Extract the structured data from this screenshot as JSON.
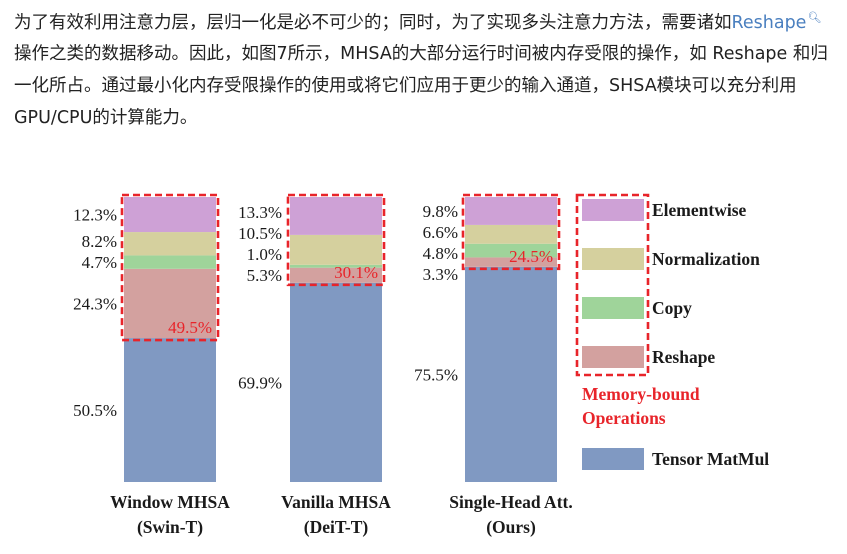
{
  "article": {
    "before_link": "为了有效利用注意力层，层归一化是必不可少的；同时，为了实现多头注意力方法，需要诸如",
    "link_text": "Reshape",
    "link_icon": "search-icon",
    "after_link": " 操作之类的数据移动。因此，如图7所示，MHSA的大部分运行时间被内存受限的操作，如 Reshape 和归一化所占。通过最小化内存受限操作的使用或将它们应用于更少的输入通道，SHSA模块可以充分利用GPU/CPU的计算能力。"
  },
  "chart_data": {
    "type": "bar",
    "stacked": true,
    "ylim": [
      0,
      100
    ],
    "categories": [
      [
        "Window MHSA",
        "(Swin-T)"
      ],
      [
        "Vanilla MHSA",
        "(DeiT-T)"
      ],
      [
        "Single-Head Att.",
        "(Ours)"
      ]
    ],
    "series": [
      {
        "name": "Tensor MatMul",
        "color": "#8099c2",
        "values": [
          50.5,
          69.9,
          75.5
        ]
      },
      {
        "name": "Reshape",
        "color": "#d3a19f",
        "values": [
          24.3,
          5.3,
          3.3
        ]
      },
      {
        "name": "Copy",
        "color": "#9fd49a",
        "values": [
          4.7,
          1.0,
          4.8
        ]
      },
      {
        "name": "Normalization",
        "color": "#d5d09e",
        "values": [
          8.2,
          10.5,
          6.6
        ]
      },
      {
        "name": "Elementwise",
        "color": "#cea1d6",
        "values": [
          12.3,
          13.3,
          9.8
        ]
      }
    ],
    "value_labels": [
      [
        "50.5%",
        "24.3%",
        "4.7%",
        "8.2%",
        "12.3%"
      ],
      [
        "69.9%",
        "5.3%",
        "1.0%",
        "10.5%",
        "13.3%"
      ],
      [
        "75.5%",
        "3.3%",
        "4.8%",
        "6.6%",
        "9.8%"
      ]
    ],
    "memory_bound_totals": [
      "49.5%",
      "30.1%",
      "24.5%"
    ],
    "highlight_color": "#e8242a",
    "legend_order": [
      "Elementwise",
      "Normalization",
      "Copy",
      "Reshape"
    ],
    "legend_group_label": [
      "Memory-bound",
      "Operations"
    ],
    "legend_bottom": "Tensor MatMul",
    "legend_position": "right"
  }
}
